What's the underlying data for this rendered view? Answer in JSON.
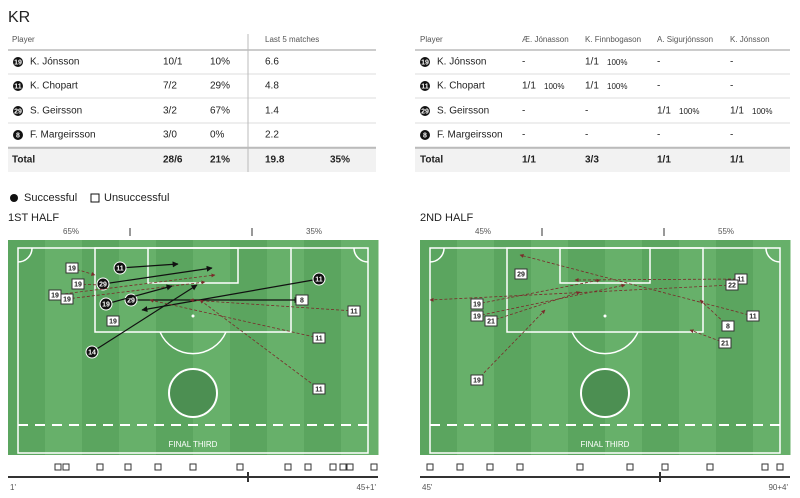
{
  "title": "KR",
  "left_table": {
    "headers": [
      "Player",
      "Last 5 matches"
    ],
    "rows": [
      {
        "number": "19",
        "name": "K. Jónsson",
        "cells": [
          "10/1",
          "10%",
          "6.6"
        ]
      },
      {
        "number": "11",
        "name": "K. Chopart",
        "cells": [
          "7/2",
          "29%",
          "4.8"
        ]
      },
      {
        "number": "29",
        "name": "S. Geirsson",
        "cells": [
          "3/2",
          "67%",
          "1.4"
        ]
      },
      {
        "number": "8",
        "name": "F. Margeirsson",
        "cells": [
          "3/0",
          "0%",
          "2.2"
        ]
      }
    ],
    "total": {
      "label": "Total",
      "cells": [
        "28/6",
        "21%",
        "19.8",
        "35%"
      ]
    }
  },
  "right_table": {
    "headers": [
      "Player",
      "Æ. Jónasson",
      "K. Finnbogason",
      "A. Sigurjónsson",
      "K. Jónsson"
    ],
    "rows": [
      {
        "number": "19",
        "name": "K. Jónsson",
        "cells": [
          {
            "value": "-"
          },
          {
            "value": "1/1",
            "pct": "100%"
          },
          {
            "value": "-"
          },
          {
            "value": "-"
          }
        ]
      },
      {
        "number": "11",
        "name": "K. Chopart",
        "cells": [
          {
            "value": "1/1",
            "pct": "100%"
          },
          {
            "value": "1/1",
            "pct": "100%"
          },
          {
            "value": "-"
          },
          {
            "value": "-"
          }
        ]
      },
      {
        "number": "29",
        "name": "S. Geirsson",
        "cells": [
          {
            "value": "-"
          },
          {
            "value": "-"
          },
          {
            "value": "1/1",
            "pct": "100%"
          },
          {
            "value": "1/1",
            "pct": "100%"
          }
        ]
      },
      {
        "number": "8",
        "name": "F. Margeirsson",
        "cells": [
          {
            "value": "-"
          },
          {
            "value": "-"
          },
          {
            "value": "-"
          },
          {
            "value": "-"
          }
        ]
      }
    ],
    "total": {
      "label": "Total",
      "cells": [
        "1/1",
        "3/3",
        "1/1",
        "1/1"
      ]
    }
  },
  "legend": {
    "successful": "Successful",
    "unsuccessful": "Unsuccessful"
  },
  "halves": [
    {
      "title": "1ST HALF",
      "left_pct": "65%",
      "right_pct": "35%",
      "zone_label": "FINAL THIRD",
      "start": "1'",
      "end": "45+1'",
      "passes": [
        {
          "player": "11",
          "successful": true
        },
        {
          "player": "19",
          "successful": false
        },
        {
          "player": "19",
          "successful": false
        },
        {
          "player": "29",
          "successful": true
        },
        {
          "player": "19",
          "successful": false
        },
        {
          "player": "19",
          "successful": false
        },
        {
          "player": "29",
          "successful": true
        },
        {
          "player": "19",
          "successful": true
        },
        {
          "player": "19",
          "successful": false
        },
        {
          "player": "14",
          "successful": true
        },
        {
          "player": "11",
          "successful": true
        },
        {
          "player": "8",
          "successful": false
        },
        {
          "player": "11",
          "successful": false
        },
        {
          "player": "11",
          "successful": false
        },
        {
          "player": "11",
          "successful": false
        }
      ]
    },
    {
      "title": "2ND HALF",
      "left_pct": "45%",
      "right_pct": "55%",
      "zone_label": "FINAL THIRD",
      "start": "45'",
      "end": "90+4'",
      "passes": [
        {
          "player": "29",
          "successful": false
        },
        {
          "player": "11",
          "successful": false
        },
        {
          "player": "22",
          "successful": false
        },
        {
          "player": "19",
          "successful": false
        },
        {
          "player": "19",
          "successful": false
        },
        {
          "player": "21",
          "successful": false
        },
        {
          "player": "11",
          "successful": false
        },
        {
          "player": "8",
          "successful": false
        },
        {
          "player": "21",
          "successful": false
        },
        {
          "player": "19",
          "successful": false
        }
      ]
    }
  ]
}
